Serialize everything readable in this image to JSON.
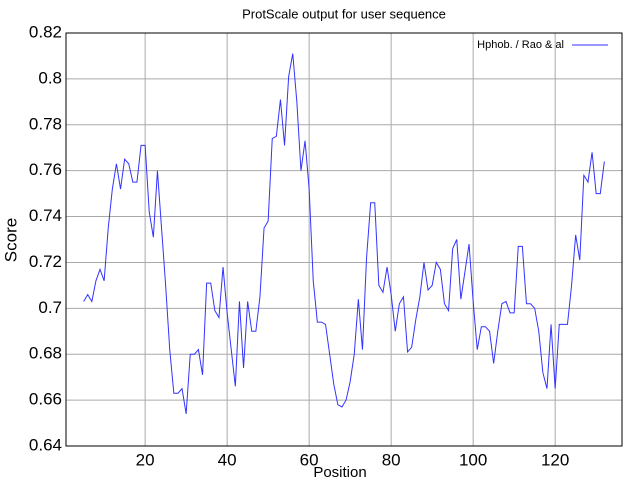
{
  "chart_data": {
    "type": "line",
    "title": "ProtScale output for user sequence",
    "x_label": "Position",
    "y_label": "Score",
    "x": [
      5,
      6,
      7,
      8,
      9,
      10,
      11,
      12,
      13,
      14,
      15,
      16,
      17,
      18,
      19,
      20,
      21,
      22,
      23,
      24,
      25,
      26,
      27,
      28,
      29,
      30,
      31,
      32,
      33,
      34,
      35,
      36,
      37,
      38,
      39,
      40,
      41,
      42,
      43,
      44,
      45,
      46,
      47,
      48,
      49,
      50,
      51,
      52,
      53,
      54,
      55,
      56,
      57,
      58,
      59,
      60,
      61,
      62,
      63,
      64,
      65,
      66,
      67,
      68,
      69,
      70,
      71,
      72,
      73,
      74,
      75,
      76,
      77,
      78,
      79,
      80,
      81,
      82,
      83,
      84,
      85,
      86,
      87,
      88,
      89,
      90,
      91,
      92,
      93,
      94,
      95,
      96,
      97,
      98,
      99,
      100,
      101,
      102,
      103,
      104,
      105,
      106,
      107,
      108,
      109,
      110,
      111,
      112,
      113,
      114,
      115,
      116,
      117,
      118,
      119,
      120,
      121,
      122,
      123,
      124,
      125,
      126,
      127,
      128,
      129,
      130,
      131,
      132
    ],
    "series": [
      {
        "name": "Hphob. / Rao & al",
        "color": "#3333ff",
        "values": [
          0.703,
          0.706,
          0.703,
          0.712,
          0.717,
          0.712,
          0.735,
          0.752,
          0.763,
          0.752,
          0.765,
          0.763,
          0.755,
          0.755,
          0.771,
          0.771,
          0.742,
          0.731,
          0.76,
          0.735,
          0.71,
          0.682,
          0.663,
          0.663,
          0.665,
          0.654,
          0.68,
          0.68,
          0.682,
          0.671,
          0.711,
          0.711,
          0.699,
          0.696,
          0.718,
          0.698,
          0.682,
          0.666,
          0.703,
          0.674,
          0.703,
          0.69,
          0.69,
          0.705,
          0.735,
          0.738,
          0.774,
          0.775,
          0.791,
          0.771,
          0.801,
          0.811,
          0.79,
          0.76,
          0.773,
          0.752,
          0.712,
          0.694,
          0.694,
          0.693,
          0.68,
          0.667,
          0.658,
          0.657,
          0.66,
          0.668,
          0.68,
          0.704,
          0.682,
          0.722,
          0.746,
          0.746,
          0.71,
          0.707,
          0.718,
          0.706,
          0.69,
          0.702,
          0.705,
          0.681,
          0.683,
          0.695,
          0.705,
          0.72,
          0.708,
          0.71,
          0.72,
          0.717,
          0.702,
          0.699,
          0.726,
          0.73,
          0.704,
          0.716,
          0.728,
          0.703,
          0.682,
          0.692,
          0.692,
          0.69,
          0.676,
          0.69,
          0.702,
          0.703,
          0.698,
          0.698,
          0.727,
          0.727,
          0.702,
          0.702,
          0.7,
          0.69,
          0.672,
          0.665,
          0.693,
          0.665,
          0.693,
          0.693,
          0.693,
          0.71,
          0.732,
          0.721,
          0.758,
          0.755,
          0.768,
          0.75,
          0.75,
          0.764
        ]
      }
    ],
    "xlim": [
      0.7,
      136.3
    ],
    "xticks": [
      20,
      40,
      60,
      80,
      100,
      120
    ],
    "ylim": [
      0.64,
      0.82
    ],
    "yticks": [
      0.64,
      0.66,
      0.68,
      0.7,
      0.72,
      0.74,
      0.76,
      0.78,
      0.8,
      0.82
    ],
    "grid": true,
    "legend": "upper right"
  }
}
